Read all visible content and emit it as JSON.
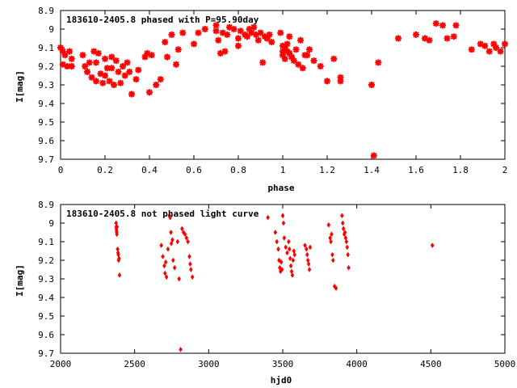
{
  "chart_data": [
    {
      "type": "scatter",
      "title": "183610-2405.8 phased with P=95.90day",
      "xlabel": "phase",
      "ylabel": "I[mag]",
      "xlim": [
        0,
        2
      ],
      "ylim": [
        8.9,
        9.7
      ],
      "y_inverted": true,
      "x_ticks": [
        "0",
        "0.2",
        "0.4",
        "0.6",
        "0.8",
        "1",
        "1.2",
        "1.4",
        "1.6",
        "1.8",
        "2"
      ],
      "y_ticks": [
        "8.9",
        "9",
        "9.1",
        "9.2",
        "9.3",
        "9.4",
        "9.5",
        "9.6",
        "9.7"
      ],
      "marker": "star",
      "color": "#ff0000",
      "grid": false,
      "points": [
        [
          0.0,
          9.1
        ],
        [
          0.01,
          9.12
        ],
        [
          0.01,
          9.19
        ],
        [
          0.02,
          9.14
        ],
        [
          0.03,
          9.2
        ],
        [
          0.04,
          9.12
        ],
        [
          0.05,
          9.16
        ],
        [
          0.05,
          9.2
        ],
        [
          0.1,
          9.14
        ],
        [
          0.11,
          9.2
        ],
        [
          0.12,
          9.23
        ],
        [
          0.13,
          9.18
        ],
        [
          0.14,
          9.26
        ],
        [
          0.15,
          9.12
        ],
        [
          0.16,
          9.18
        ],
        [
          0.16,
          9.28
        ],
        [
          0.17,
          9.13
        ],
        [
          0.18,
          9.24
        ],
        [
          0.19,
          9.29
        ],
        [
          0.2,
          9.16
        ],
        [
          0.2,
          9.25
        ],
        [
          0.21,
          9.21
        ],
        [
          0.22,
          9.28
        ],
        [
          0.23,
          9.15
        ],
        [
          0.23,
          9.21
        ],
        [
          0.24,
          9.3
        ],
        [
          0.25,
          9.17
        ],
        [
          0.26,
          9.23
        ],
        [
          0.27,
          9.29
        ],
        [
          0.28,
          9.2
        ],
        [
          0.29,
          9.25
        ],
        [
          0.3,
          9.18
        ],
        [
          0.31,
          9.23
        ],
        [
          0.32,
          9.35
        ],
        [
          0.34,
          9.27
        ],
        [
          0.35,
          9.22
        ],
        [
          0.38,
          9.15
        ],
        [
          0.39,
          9.13
        ],
        [
          0.4,
          9.34
        ],
        [
          0.41,
          9.14
        ],
        [
          0.43,
          9.3
        ],
        [
          0.45,
          9.27
        ],
        [
          0.47,
          9.07
        ],
        [
          0.48,
          9.15
        ],
        [
          0.5,
          9.03
        ],
        [
          0.52,
          9.19
        ],
        [
          0.53,
          9.11
        ],
        [
          0.55,
          9.02
        ],
        [
          0.6,
          9.08
        ],
        [
          0.62,
          9.02
        ],
        [
          0.65,
          9.0
        ],
        [
          0.7,
          8.98
        ],
        [
          0.7,
          9.01
        ],
        [
          0.71,
          9.06
        ],
        [
          0.72,
          9.13
        ],
        [
          0.73,
          9.02
        ],
        [
          0.74,
          9.12
        ],
        [
          0.75,
          9.03
        ],
        [
          0.76,
          8.99
        ],
        [
          0.78,
          9.0
        ],
        [
          0.8,
          9.05
        ],
        [
          0.8,
          9.09
        ],
        [
          0.81,
          9.01
        ],
        [
          0.83,
          9.03
        ],
        [
          0.84,
          9.04
        ],
        [
          0.85,
          9.0
        ],
        [
          0.86,
          9.02
        ],
        [
          0.87,
          8.99
        ],
        [
          0.88,
          9.03
        ],
        [
          0.89,
          9.06
        ],
        [
          0.9,
          9.02
        ],
        [
          0.91,
          9.18
        ],
        [
          0.92,
          9.04
        ],
        [
          0.93,
          9.05
        ],
        [
          0.94,
          9.03
        ],
        [
          0.95,
          9.07
        ],
        [
          0.99,
          9.02
        ],
        [
          1.0,
          9.09
        ],
        [
          1.0,
          9.12
        ],
        [
          1.0,
          9.14
        ],
        [
          1.01,
          9.1
        ],
        [
          1.01,
          9.16
        ],
        [
          1.02,
          9.12
        ],
        [
          1.02,
          9.08
        ],
        [
          1.03,
          9.13
        ],
        [
          1.03,
          9.04
        ],
        [
          1.04,
          9.15
        ],
        [
          1.05,
          9.17
        ],
        [
          1.06,
          9.11
        ],
        [
          1.07,
          9.19
        ],
        [
          1.08,
          9.06
        ],
        [
          1.09,
          9.21
        ],
        [
          1.1,
          9.14
        ],
        [
          1.11,
          9.14
        ],
        [
          1.12,
          9.11
        ],
        [
          1.14,
          9.17
        ],
        [
          1.17,
          9.2
        ],
        [
          1.2,
          9.28
        ],
        [
          1.23,
          9.16
        ],
        [
          1.26,
          9.26
        ],
        [
          1.26,
          9.28
        ],
        [
          1.4,
          9.3
        ],
        [
          1.41,
          9.68
        ],
        [
          1.43,
          9.18
        ],
        [
          1.52,
          9.05
        ],
        [
          1.6,
          9.03
        ],
        [
          1.64,
          9.05
        ],
        [
          1.66,
          9.06
        ],
        [
          1.69,
          8.97
        ],
        [
          1.72,
          8.98
        ],
        [
          1.74,
          9.05
        ],
        [
          1.77,
          9.04
        ],
        [
          1.78,
          8.98
        ],
        [
          1.85,
          9.11
        ],
        [
          1.89,
          9.08
        ],
        [
          1.91,
          9.09
        ],
        [
          1.93,
          9.12
        ],
        [
          1.95,
          9.08
        ],
        [
          1.96,
          9.1
        ],
        [
          1.98,
          9.12
        ],
        [
          2.0,
          9.08
        ]
      ]
    },
    {
      "type": "scatter",
      "title": "183610-2405.8 not phased light curve",
      "xlabel": "hjd0",
      "ylabel": "I[mag]",
      "xlim": [
        2000,
        5000
      ],
      "ylim": [
        8.9,
        9.7
      ],
      "y_inverted": true,
      "x_ticks": [
        "2000",
        "2500",
        "3000",
        "3500",
        "4000",
        "4500",
        "5000"
      ],
      "y_ticks": [
        "8.9",
        "9",
        "9.1",
        "9.2",
        "9.3",
        "9.4",
        "9.5",
        "9.6",
        "9.7"
      ],
      "marker": "diamond",
      "color": "#ff0000",
      "grid": false,
      "points": [
        [
          2375,
          9.0
        ],
        [
          2376,
          9.02
        ],
        [
          2377,
          9.03
        ],
        [
          2378,
          9.04
        ],
        [
          2379,
          9.05
        ],
        [
          2380,
          9.06
        ],
        [
          2381,
          9.02
        ],
        [
          2385,
          9.14
        ],
        [
          2388,
          9.16
        ],
        [
          2390,
          9.17
        ],
        [
          2392,
          9.2
        ],
        [
          2395,
          9.19
        ],
        [
          2398,
          9.28
        ],
        [
          2680,
          9.12
        ],
        [
          2690,
          9.18
        ],
        [
          2700,
          9.23
        ],
        [
          2705,
          9.27
        ],
        [
          2710,
          9.21
        ],
        [
          2715,
          9.29
        ],
        [
          2725,
          9.14
        ],
        [
          2735,
          8.96
        ],
        [
          2740,
          8.97
        ],
        [
          2745,
          9.05
        ],
        [
          2748,
          9.11
        ],
        [
          2755,
          9.09
        ],
        [
          2760,
          9.2
        ],
        [
          2770,
          9.24
        ],
        [
          2790,
          9.1
        ],
        [
          2800,
          9.3
        ],
        [
          2810,
          9.68
        ],
        [
          2820,
          9.03
        ],
        [
          2830,
          9.05
        ],
        [
          2840,
          9.06
        ],
        [
          2850,
          9.08
        ],
        [
          2860,
          9.1
        ],
        [
          2870,
          9.18
        ],
        [
          2875,
          9.22
        ],
        [
          2880,
          9.25
        ],
        [
          2890,
          9.29
        ],
        [
          3400,
          8.97
        ],
        [
          3450,
          9.05
        ],
        [
          3460,
          9.1
        ],
        [
          3470,
          9.14
        ],
        [
          3475,
          9.2
        ],
        [
          3480,
          9.24
        ],
        [
          3485,
          9.26
        ],
        [
          3490,
          9.21
        ],
        [
          3495,
          9.25
        ],
        [
          3500,
          8.96
        ],
        [
          3505,
          9.0
        ],
        [
          3510,
          9.08
        ],
        [
          3520,
          9.13
        ],
        [
          3530,
          9.16
        ],
        [
          3540,
          9.1
        ],
        [
          3545,
          9.14
        ],
        [
          3550,
          9.19
        ],
        [
          3555,
          9.23
        ],
        [
          3560,
          9.26
        ],
        [
          3565,
          9.28
        ],
        [
          3570,
          9.2
        ],
        [
          3575,
          9.15
        ],
        [
          3580,
          9.17
        ],
        [
          3650,
          9.12
        ],
        [
          3660,
          9.14
        ],
        [
          3665,
          9.17
        ],
        [
          3670,
          9.2
        ],
        [
          3675,
          9.22
        ],
        [
          3680,
          9.25
        ],
        [
          3685,
          9.13
        ],
        [
          3810,
          9.01
        ],
        [
          3820,
          9.08
        ],
        [
          3825,
          9.1
        ],
        [
          3830,
          9.06
        ],
        [
          3835,
          9.17
        ],
        [
          3840,
          9.2
        ],
        [
          3850,
          9.34
        ],
        [
          3860,
          9.35
        ],
        [
          3900,
          8.96
        ],
        [
          3905,
          9.0
        ],
        [
          3910,
          9.03
        ],
        [
          3915,
          9.06
        ],
        [
          3920,
          9.05
        ],
        [
          3925,
          9.08
        ],
        [
          3930,
          9.1
        ],
        [
          3935,
          9.13
        ],
        [
          3940,
          9.17
        ],
        [
          3945,
          9.24
        ],
        [
          4510,
          9.12
        ]
      ]
    }
  ]
}
